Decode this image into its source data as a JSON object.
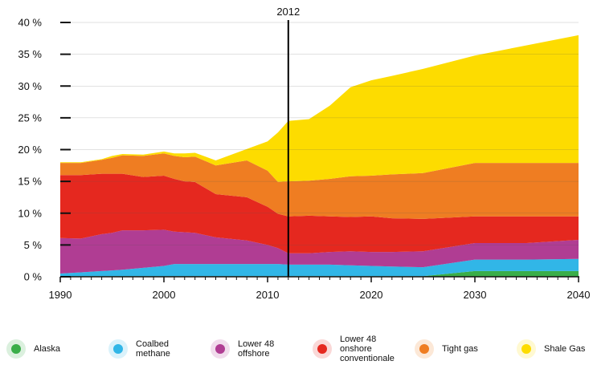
{
  "chart_data": {
    "type": "area",
    "stacked": true,
    "x": [
      1990,
      1992,
      1994,
      1995,
      1996,
      1998,
      2000,
      2001,
      2002,
      2003,
      2005,
      2008,
      2010,
      2011,
      2012,
      2014,
      2016,
      2018,
      2020,
      2022,
      2025,
      2030,
      2035,
      2040
    ],
    "xlim": [
      1990,
      2040
    ],
    "ylim": [
      0,
      40
    ],
    "x_ticks": [
      "1990",
      "2000",
      "2010",
      "2020",
      "2030",
      "2040"
    ],
    "y_ticks": [
      "0 %",
      "5 %",
      "10 %",
      "15 %",
      "20 %",
      "25 %",
      "30 %",
      "35 %",
      "40 %"
    ],
    "marker": {
      "x": 2012,
      "label": "2012"
    },
    "series": [
      {
        "name": "Alaska",
        "color": "#3aae49",
        "values": [
          0.1,
          0.1,
          0.1,
          0.1,
          0.1,
          0.1,
          0.1,
          0.1,
          0.1,
          0.1,
          0.1,
          0.1,
          0.1,
          0.1,
          0.1,
          0.1,
          0.1,
          0.1,
          0.1,
          0.1,
          0.1,
          0.9,
          0.9,
          0.9
        ]
      },
      {
        "name": "Coalbed\nmethane",
        "color": "#31b6e7",
        "values": [
          0.4,
          0.6,
          0.8,
          0.9,
          1.0,
          1.3,
          1.6,
          1.9,
          1.9,
          1.9,
          1.9,
          1.9,
          1.9,
          1.9,
          1.8,
          1.8,
          1.8,
          1.7,
          1.6,
          1.5,
          1.4,
          1.8,
          1.8,
          1.9
        ]
      },
      {
        "name": "Lower 48\noffshore",
        "color": "#b03d93",
        "values": [
          5.6,
          5.3,
          5.8,
          5.9,
          6.2,
          5.9,
          5.7,
          5.1,
          5.0,
          4.9,
          4.2,
          3.7,
          3.0,
          2.5,
          1.8,
          1.8,
          2.0,
          2.2,
          2.2,
          2.3,
          2.5,
          2.6,
          2.6,
          3.0
        ]
      },
      {
        "name": "Lower 48\nonshore\nconventionale",
        "color": "#e5281f",
        "values": [
          9.9,
          10.0,
          9.5,
          9.3,
          8.9,
          8.4,
          8.5,
          8.3,
          8.0,
          8.0,
          6.8,
          6.8,
          6.0,
          5.4,
          5.8,
          5.9,
          5.6,
          5.4,
          5.6,
          5.3,
          5.1,
          4.2,
          4.2,
          3.7
        ]
      },
      {
        "name": "Tight gas",
        "color": "#ef7d22",
        "values": [
          1.9,
          1.9,
          2.2,
          2.5,
          2.9,
          3.3,
          3.5,
          3.6,
          3.8,
          4.0,
          4.5,
          5.8,
          5.7,
          5.0,
          5.5,
          5.5,
          5.9,
          6.4,
          6.4,
          6.9,
          7.2,
          8.4,
          8.4,
          8.4
        ]
      },
      {
        "name": "Shale Gas",
        "color": "#fddc00",
        "values": [
          0.1,
          0.1,
          0.1,
          0.3,
          0.2,
          0.2,
          0.3,
          0.4,
          0.6,
          0.6,
          0.8,
          1.8,
          4.6,
          7.8,
          9.5,
          9.7,
          11.5,
          14.0,
          15.0,
          15.5,
          16.4,
          16.9,
          18.5,
          20.1
        ]
      }
    ]
  }
}
